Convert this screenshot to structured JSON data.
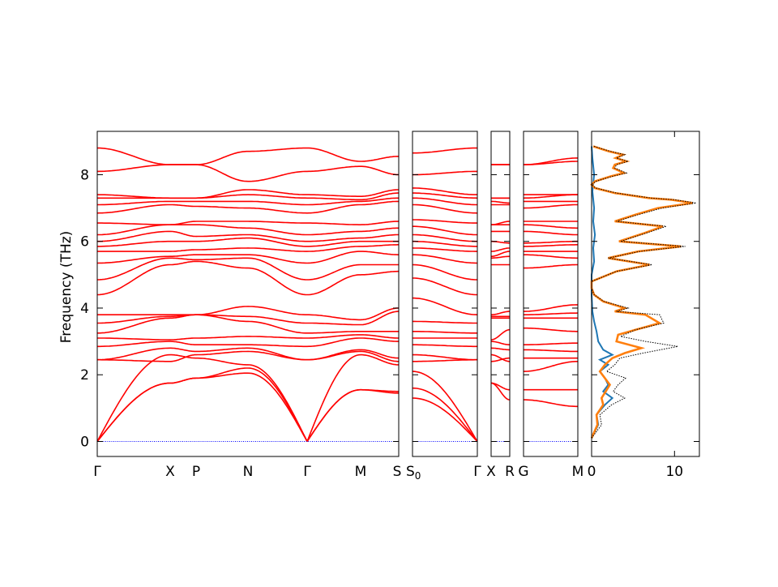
{
  "chart_data": {
    "type": "line",
    "ylabel": "Frequency (THz)",
    "ylim": [
      -0.45,
      9.3
    ],
    "y_ticks": [
      "0",
      "2",
      "4",
      "6",
      "8"
    ],
    "band_color": "#ff0000",
    "zero_line_color": "#0000ff",
    "dos_colors": {
      "total": "#000000",
      "partial_1": "#1f77b4",
      "partial_2": "#ff7f0e"
    },
    "band_panels": [
      {
        "segments": [
          {
            "from": "Γ",
            "to": "X"
          },
          {
            "from": "X",
            "to": "P"
          },
          {
            "from": "P",
            "to": "N"
          },
          {
            "from": "N",
            "to": "Γ"
          },
          {
            "from": "Γ",
            "to": "M"
          },
          {
            "from": "M",
            "to": "S"
          }
        ],
        "tick_labels": [
          "Γ",
          "X",
          "P",
          "N",
          "Γ",
          "M",
          "S"
        ]
      },
      {
        "segments": [
          {
            "from": "S0",
            "to": "Γ"
          }
        ],
        "tick_labels": [
          "S0",
          "Γ"
        ]
      },
      {
        "segments": [
          {
            "from": "X",
            "to": "R"
          }
        ],
        "tick_labels": [
          "X",
          "R"
        ]
      },
      {
        "segments": [
          {
            "from": "G",
            "to": "M"
          }
        ],
        "tick_labels": [
          "G",
          "M"
        ]
      }
    ],
    "gamma_frequencies": [
      0,
      0,
      0,
      2.45,
      2.45,
      2.85,
      3.1,
      3.25,
      3.55,
      3.8,
      4.4,
      4.85,
      5.35,
      5.7,
      5.85,
      6.0,
      6.2,
      6.55,
      6.85,
      7.1,
      7.3,
      7.4,
      8.1,
      8.8
    ],
    "band_frequencies": {
      "X": [
        1.75,
        1.75,
        2.6,
        2.4,
        2.8,
        3.0,
        3.05,
        3.7,
        3.75,
        3.8,
        5.3,
        5.5,
        5.55,
        5.7,
        6.0,
        6.3,
        6.5,
        6.5,
        7.1,
        7.2,
        7.3,
        7.3,
        8.3,
        8.3
      ],
      "P": [
        1.9,
        1.9,
        2.5,
        2.6,
        2.7,
        2.9,
        3.1,
        3.8,
        3.8,
        3.8,
        5.4,
        5.45,
        5.6,
        5.75,
        6.0,
        6.15,
        6.5,
        6.6,
        7.05,
        7.2,
        7.3,
        7.3,
        8.3,
        8.3
      ],
      "N": [
        2.05,
        2.2,
        2.3,
        2.7,
        2.8,
        2.9,
        3.15,
        3.6,
        3.75,
        4.05,
        5.2,
        5.5,
        5.6,
        5.8,
        6.1,
        6.2,
        6.4,
        6.6,
        7.0,
        7.2,
        7.4,
        7.55,
        7.8,
        8.7
      ],
      "M": [
        1.55,
        1.55,
        2.6,
        2.7,
        2.75,
        3.1,
        3.2,
        3.3,
        3.5,
        3.65,
        5.0,
        5.3,
        5.7,
        5.85,
        6.0,
        6.1,
        6.3,
        6.5,
        7.1,
        7.2,
        7.25,
        7.35,
        8.25,
        8.4
      ],
      "S": [
        1.45,
        1.5,
        2.3,
        2.4,
        2.5,
        3.0,
        3.1,
        3.3,
        3.9,
        4.0,
        5.1,
        5.3,
        5.6,
        5.9,
        6.0,
        6.2,
        6.4,
        6.6,
        7.2,
        7.3,
        7.45,
        7.55,
        8.0,
        8.55
      ],
      "S0": [
        1.3,
        1.6,
        2.1,
        2.4,
        2.6,
        2.9,
        3.1,
        3.3,
        3.6,
        4.3,
        4.9,
        5.3,
        5.6,
        5.8,
        6.0,
        6.2,
        6.45,
        6.65,
        7.1,
        7.3,
        7.45,
        7.6,
        8.0,
        8.65
      ],
      "R": [
        1.25,
        1.55,
        2.4,
        2.5,
        2.75,
        2.9,
        3.35,
        3.7,
        3.75,
        3.9,
        5.3,
        5.55,
        5.7,
        5.8,
        5.95,
        6.3,
        6.5,
        6.6,
        7.1,
        7.15,
        7.3,
        7.3,
        8.3,
        8.3
      ],
      "G": [
        1.25,
        1.55,
        2.1,
        2.5,
        2.75,
        2.9,
        3.4,
        3.7,
        3.8,
        3.9,
        5.2,
        5.6,
        5.7,
        5.85,
        5.95,
        6.3,
        6.5,
        6.6,
        7.0,
        7.2,
        7.3,
        7.4,
        8.3,
        8.3
      ],
      "M2": [
        1.05,
        1.55,
        2.4,
        2.5,
        2.7,
        2.95,
        3.3,
        3.7,
        3.85,
        4.1,
        5.3,
        5.5,
        5.7,
        5.9,
        6.0,
        6.2,
        6.4,
        6.6,
        7.1,
        7.2,
        7.4,
        7.4,
        8.4,
        8.5
      ]
    },
    "dos": {
      "xlim": [
        0,
        13
      ],
      "x_ticks": [
        "0",
        "10"
      ],
      "total": [
        [
          0.0,
          0.1
        ],
        [
          1.2,
          0.5
        ],
        [
          1.0,
          0.8
        ],
        [
          2.4,
          1.1
        ],
        [
          4.0,
          1.3
        ],
        [
          2.6,
          1.5
        ],
        [
          3.2,
          1.7
        ],
        [
          4.1,
          1.9
        ],
        [
          1.8,
          2.1
        ],
        [
          2.8,
          2.3
        ],
        [
          3.4,
          2.5
        ],
        [
          6.2,
          2.65
        ],
        [
          10.4,
          2.85
        ],
        [
          6.5,
          3.0
        ],
        [
          3.5,
          3.15
        ],
        [
          5.3,
          3.35
        ],
        [
          8.7,
          3.55
        ],
        [
          8.2,
          3.8
        ],
        [
          3.0,
          3.9
        ],
        [
          4.4,
          4.0
        ],
        [
          1.5,
          4.2
        ],
        [
          0.3,
          4.4
        ],
        [
          0.0,
          4.6
        ],
        [
          0.0,
          4.8
        ],
        [
          1.5,
          4.95
        ],
        [
          3.0,
          5.1
        ],
        [
          7.3,
          5.3
        ],
        [
          2.0,
          5.5
        ],
        [
          5.8,
          5.7
        ],
        [
          11.3,
          5.85
        ],
        [
          3.5,
          6.0
        ],
        [
          6.6,
          6.25
        ],
        [
          9.0,
          6.45
        ],
        [
          3.0,
          6.6
        ],
        [
          5.6,
          6.8
        ],
        [
          8.5,
          7.0
        ],
        [
          12.6,
          7.15
        ],
        [
          10.0,
          7.25
        ],
        [
          7.2,
          7.3
        ],
        [
          3.0,
          7.45
        ],
        [
          0.5,
          7.6
        ],
        [
          0.0,
          7.7
        ],
        [
          0.5,
          7.8
        ],
        [
          2.5,
          7.95
        ],
        [
          4.2,
          8.05
        ],
        [
          2.8,
          8.2
        ],
        [
          3.0,
          8.3
        ],
        [
          4.4,
          8.4
        ],
        [
          3.0,
          8.5
        ],
        [
          4.0,
          8.6
        ],
        [
          2.3,
          8.7
        ],
        [
          0.3,
          8.85
        ]
      ],
      "partial_1": [
        [
          0.0,
          0.1
        ],
        [
          0.8,
          0.5
        ],
        [
          0.6,
          0.8
        ],
        [
          1.6,
          1.1
        ],
        [
          2.5,
          1.3
        ],
        [
          1.4,
          1.5
        ],
        [
          2.0,
          1.7
        ],
        [
          1.6,
          1.9
        ],
        [
          1.0,
          2.1
        ],
        [
          2.0,
          2.3
        ],
        [
          1.0,
          2.45
        ],
        [
          2.5,
          2.6
        ],
        [
          1.4,
          2.75
        ],
        [
          0.8,
          3.0
        ],
        [
          0.6,
          3.3
        ],
        [
          0.3,
          3.6
        ],
        [
          0.1,
          3.9
        ],
        [
          0.0,
          4.4
        ],
        [
          0.0,
          5.0
        ],
        [
          0.3,
          5.4
        ],
        [
          0.2,
          5.8
        ],
        [
          0.4,
          6.2
        ],
        [
          0.2,
          6.6
        ],
        [
          0.3,
          7.0
        ],
        [
          0.1,
          7.5
        ],
        [
          0.3,
          8.0
        ],
        [
          0.1,
          8.5
        ],
        [
          0.0,
          8.85
        ]
      ],
      "partial_2": [
        [
          0.0,
          0.1
        ],
        [
          0.7,
          0.5
        ],
        [
          0.6,
          0.8
        ],
        [
          1.4,
          1.1
        ],
        [
          1.2,
          1.3
        ],
        [
          1.7,
          1.5
        ],
        [
          2.2,
          1.7
        ],
        [
          1.0,
          2.1
        ],
        [
          1.6,
          2.3
        ],
        [
          2.5,
          2.5
        ],
        [
          4.0,
          2.65
        ],
        [
          6.0,
          2.8
        ],
        [
          3.0,
          3.0
        ],
        [
          3.2,
          3.2
        ],
        [
          5.3,
          3.35
        ],
        [
          8.2,
          3.55
        ],
        [
          6.5,
          3.8
        ],
        [
          2.8,
          3.9
        ],
        [
          4.0,
          4.0
        ],
        [
          1.4,
          4.2
        ],
        [
          0.3,
          4.4
        ],
        [
          0.0,
          4.6
        ],
        [
          0.0,
          4.8
        ],
        [
          1.5,
          4.95
        ],
        [
          3.0,
          5.1
        ],
        [
          7.0,
          5.3
        ],
        [
          2.0,
          5.5
        ],
        [
          5.6,
          5.7
        ],
        [
          10.8,
          5.85
        ],
        [
          3.3,
          6.0
        ],
        [
          6.4,
          6.25
        ],
        [
          8.6,
          6.45
        ],
        [
          2.8,
          6.6
        ],
        [
          5.3,
          6.8
        ],
        [
          8.0,
          7.0
        ],
        [
          12.2,
          7.15
        ],
        [
          9.6,
          7.25
        ],
        [
          6.9,
          7.3
        ],
        [
          2.8,
          7.45
        ],
        [
          0.4,
          7.6
        ],
        [
          0.0,
          7.7
        ],
        [
          0.4,
          7.8
        ],
        [
          2.3,
          7.95
        ],
        [
          3.9,
          8.05
        ],
        [
          2.6,
          8.2
        ],
        [
          2.8,
          8.3
        ],
        [
          4.2,
          8.4
        ],
        [
          2.9,
          8.5
        ],
        [
          3.8,
          8.6
        ],
        [
          2.1,
          8.7
        ],
        [
          0.2,
          8.85
        ]
      ]
    }
  }
}
